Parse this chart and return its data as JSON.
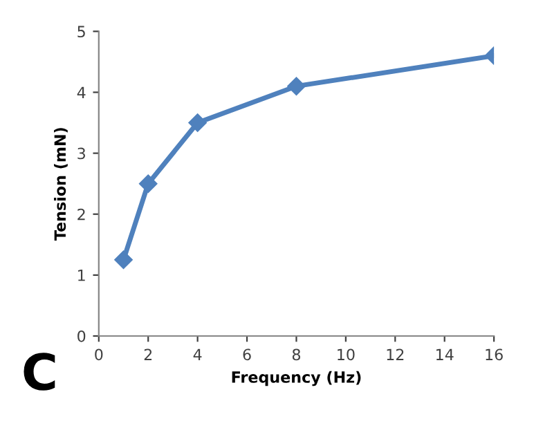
{
  "chart_data": {
    "type": "line",
    "xlabel": "Frequency (Hz)",
    "ylabel": "Tension (mN)",
    "annotations": [
      "C"
    ],
    "x": [
      1,
      2,
      4,
      8,
      16
    ],
    "series": [
      {
        "color": "#4f81bd",
        "values": [
          1.25,
          2.5,
          3.5,
          4.1,
          4.6
        ]
      }
    ],
    "xlim": [
      0,
      16
    ],
    "xticks": [
      0,
      2,
      4,
      6,
      8,
      10,
      12,
      14,
      16
    ],
    "ylim": [
      0,
      5
    ],
    "yticks": [
      0,
      1,
      2,
      3,
      4,
      5
    ],
    "grid": false,
    "legend": false,
    "marker": "diamond",
    "line_style": "solid"
  }
}
